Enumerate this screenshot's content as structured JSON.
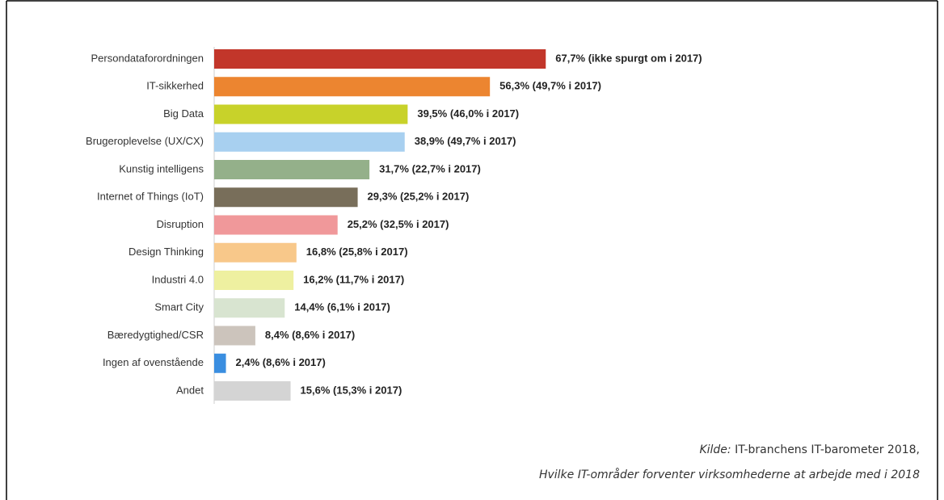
{
  "chart_data": {
    "type": "bar",
    "orientation": "horizontal",
    "categories": [
      "Persondataforordningen",
      "IT-sikkerhed",
      "Big Data",
      "Brugeroplevelse (UX/CX)",
      "Kunstig intelligens",
      "Internet of Things (IoT)",
      "Disruption",
      "Design Thinking",
      "Industri 4.0",
      "Smart City",
      "Bæredygtighed/CSR",
      "Ingen af ovenstående",
      "Andet"
    ],
    "values": [
      67.7,
      56.3,
      39.5,
      38.9,
      31.7,
      29.3,
      25.2,
      16.8,
      16.2,
      14.4,
      8.4,
      2.4,
      15.6
    ],
    "value_labels": [
      "67,7% (ikke spurgt om i 2017)",
      "56,3% (49,7% i 2017)",
      "39,5% (46,0% i 2017)",
      "38,9% (49,7% i 2017)",
      "31,7% (22,7% i 2017)",
      "29,3% (25,2% i 2017)",
      "25,2% (32,5% i 2017)",
      "16,8% (25,8% i 2017)",
      "16,2% (11,7% i 2017)",
      "14,4% (6,1% i 2017)",
      "8,4% (8,6% i 2017)",
      "2,4% (8,6% i 2017)",
      "15,6% (15,3% i 2017)"
    ],
    "colors": [
      "#c2362a",
      "#ec8530",
      "#c8d22a",
      "#a8d0f0",
      "#94b08a",
      "#786e5a",
      "#f0989a",
      "#f8c88a",
      "#eef0a0",
      "#d8e4d0",
      "#ccc4bc",
      "#3a8ee0",
      "#d4d4d4"
    ],
    "caption_label": "Kilde:",
    "caption_text": "IT-branchens IT-barometer 2018,",
    "caption_line2": "Hvilke IT-områder forventer virksomhederne at arbejde med i 2018"
  }
}
